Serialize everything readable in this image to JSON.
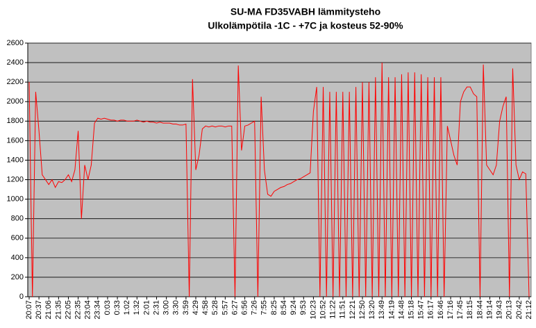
{
  "chart_data": {
    "type": "line",
    "title": "SU-MA FD35VABH lämmitysteho",
    "subtitle": "Ulkolämpötila  -1C - +7C ja kosteus 52-90%",
    "categories": [
      "20:07",
      null,
      null,
      "20:37",
      null,
      null,
      "21:06",
      null,
      null,
      "21:35",
      null,
      null,
      "22:05",
      null,
      null,
      "22:35",
      null,
      null,
      "23:04",
      null,
      null,
      "23:34",
      null,
      null,
      "0:03",
      null,
      null,
      "0:33",
      null,
      null,
      "1:02",
      null,
      null,
      "1:32",
      null,
      null,
      "2:01",
      null,
      null,
      "2:31",
      null,
      null,
      "3:00",
      null,
      null,
      "3:30",
      null,
      null,
      "3:59",
      null,
      null,
      "4:29",
      null,
      null,
      "4:58",
      null,
      null,
      "5:28",
      null,
      null,
      "5:57",
      null,
      null,
      "6:27",
      null,
      null,
      "6:56",
      null,
      null,
      "7:26",
      null,
      null,
      "7:55",
      null,
      null,
      "8:25",
      null,
      null,
      "8:54",
      null,
      null,
      "9:24",
      null,
      null,
      "9:53",
      null,
      null,
      "10:23",
      null,
      null,
      "10:52",
      null,
      null,
      "11:22",
      null,
      null,
      "11:51",
      null,
      null,
      "12:21",
      null,
      null,
      "12:50",
      null,
      null,
      "13:20",
      null,
      null,
      "13:49",
      null,
      null,
      "14:19",
      null,
      null,
      "14:48",
      null,
      null,
      "15:18",
      null,
      null,
      "15:47",
      null,
      null,
      "16:17",
      null,
      null,
      "16:46",
      null,
      null,
      "17:16",
      null,
      null,
      "17:45",
      null,
      null,
      "18:15",
      null,
      null,
      "18:44",
      null,
      null,
      "19:14",
      null,
      null,
      "19:43",
      null,
      null,
      "20:13",
      null,
      null,
      "20:42",
      null,
      null,
      "21:12"
    ],
    "series": [
      {
        "color": "#ff0000",
        "values": [
          2200,
          0,
          2100,
          1700,
          1250,
          1200,
          1150,
          1200,
          1120,
          1180,
          1170,
          1200,
          1250,
          1180,
          1300,
          1700,
          800,
          1350,
          1200,
          1350,
          1780,
          1830,
          1820,
          1830,
          1820,
          1810,
          1810,
          1800,
          1810,
          1810,
          1800,
          1800,
          1800,
          1810,
          1800,
          1790,
          1800,
          1790,
          1790,
          1780,
          1790,
          1780,
          1780,
          1780,
          1770,
          1770,
          1760,
          1760,
          1770,
          0,
          2230,
          1300,
          1450,
          1720,
          1750,
          1740,
          1750,
          1740,
          1750,
          1750,
          1740,
          1750,
          1750,
          0,
          2370,
          1500,
          1750,
          1760,
          1780,
          1800,
          0,
          2050,
          1300,
          1050,
          1030,
          1080,
          1100,
          1120,
          1130,
          1150,
          1160,
          1180,
          1200,
          1210,
          1230,
          1250,
          1270,
          1900,
          2150,
          0,
          2150,
          0,
          2100,
          0,
          2100,
          0,
          2100,
          0,
          2100,
          0,
          2150,
          0,
          2200,
          0,
          2200,
          0,
          2250,
          0,
          2400,
          0,
          2250,
          0,
          2250,
          0,
          2280,
          0,
          2300,
          0,
          2300,
          0,
          2280,
          0,
          2250,
          0,
          2250,
          0,
          2250,
          0,
          1750,
          1600,
          1450,
          1350,
          2000,
          2100,
          2150,
          2150,
          2080,
          2050,
          0,
          2380,
          1350,
          1300,
          1250,
          1350,
          1800,
          1950,
          2050,
          0,
          2340,
          1350,
          1200,
          1280,
          1260,
          0
        ]
      }
    ],
    "ylim": [
      0,
      2600
    ],
    "yticks": [
      0,
      200,
      400,
      600,
      800,
      1000,
      1200,
      1400,
      1600,
      1800,
      2000,
      2200,
      2400,
      2600
    ],
    "grid": true,
    "plot_background": "#c0c0c0"
  }
}
